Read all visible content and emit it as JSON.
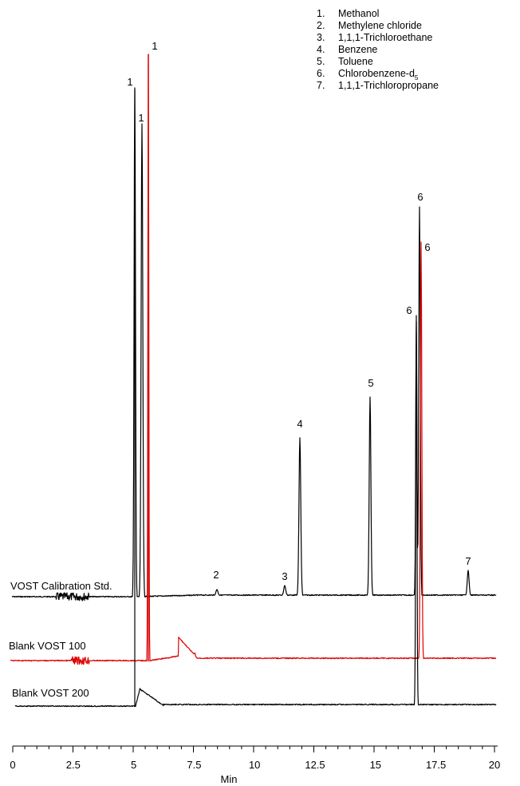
{
  "chart_data": {
    "type": "line",
    "xlabel": "Min",
    "xlim": [
      0,
      20
    ],
    "x_ticks": [
      "0",
      "2.5",
      "5",
      "7.5",
      "10",
      "12.5",
      "15",
      "17.5",
      "20"
    ],
    "legend": [
      {
        "num": "1.",
        "name": "Methanol"
      },
      {
        "num": "2.",
        "name": "Methylene chloride"
      },
      {
        "num": "3.",
        "name": "1,1,1-Trichloroethane"
      },
      {
        "num": "4.",
        "name": "Benzene"
      },
      {
        "num": "5.",
        "name": "Toluene"
      },
      {
        "num": "6.",
        "name": "Chlorobenzene-d",
        "sub": "5"
      },
      {
        "num": "7.",
        "name": "1,1,1-Trichloropropane"
      }
    ],
    "series": [
      {
        "name": "VOST Calibration Std.",
        "color": "#000000",
        "noise_range": [
          2.0,
          3.3
        ],
        "peaks": [
          {
            "x": 5.05,
            "label": "1"
          },
          {
            "x": 8.5,
            "label": "2"
          },
          {
            "x": 11.35,
            "label": "3"
          },
          {
            "x": 11.95,
            "label": "4"
          },
          {
            "x": 14.85,
            "label": "5"
          },
          {
            "x": 16.9,
            "label": "6"
          },
          {
            "x": 18.9,
            "label": "7"
          }
        ]
      },
      {
        "name": "Blank VOST 100",
        "color": "#dd0000",
        "noise_range": [
          2.3,
          3.2
        ],
        "peaks": [
          {
            "x": 5.6,
            "label": "1"
          },
          {
            "x": 17.0,
            "label": "6"
          }
        ]
      },
      {
        "name": "Blank VOST 200",
        "color": "#000000",
        "noise_range": [],
        "peaks": [
          {
            "x": 5.3,
            "label": "1"
          },
          {
            "x": 16.8,
            "label": "6"
          }
        ]
      }
    ]
  }
}
